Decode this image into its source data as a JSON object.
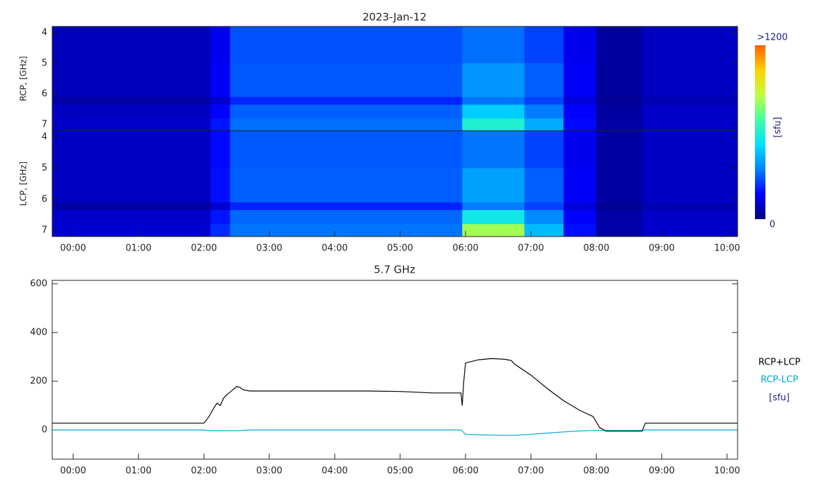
{
  "chart_data": [
    {
      "type": "heatmap",
      "title": "2023-Jan-12",
      "x_edges": [
        -0.32,
        2.1,
        2.4,
        5.95,
        6.9,
        7.5,
        8.0,
        8.7,
        10.16
      ],
      "y_edges": [
        3.8,
        5.0,
        6.1,
        6.35,
        6.8,
        7.2
      ],
      "xlim": [
        -0.32,
        10.16
      ],
      "xticks": [
        {
          "value": 0,
          "label": "00:00"
        },
        {
          "value": 1,
          "label": "01:00"
        },
        {
          "value": 2,
          "label": "02:00"
        },
        {
          "value": 3,
          "label": "03:00"
        },
        {
          "value": 4,
          "label": "04:00"
        },
        {
          "value": 5,
          "label": "05:00"
        },
        {
          "value": 6,
          "label": "06:00"
        },
        {
          "value": 7,
          "label": "07:00"
        },
        {
          "value": 8,
          "label": "08:00"
        },
        {
          "value": 9,
          "label": "09:00"
        },
        {
          "value": 10,
          "label": "10:00"
        }
      ],
      "ylim": [
        3.8,
        7.2
      ],
      "yticks": [
        4,
        5,
        6,
        7
      ],
      "clim": [
        0,
        1200
      ],
      "colormap": [
        "#00007f",
        "#0000ff",
        "#0080ff",
        "#00e0ff",
        "#40ffa0",
        "#c0ff40",
        "#ffd000",
        "#ff6000"
      ],
      "colorbar": {
        "label": "[sfu]",
        "ticks": [
          0,
          {
            "value": 1200,
            "label": ">1200"
          }
        ]
      },
      "panels": [
        {
          "ylabel": "RCP, [GHz]",
          "values": [
            [
              80,
              150,
              280,
              320,
              260,
              150,
              40,
              90
            ],
            [
              80,
              160,
              290,
              380,
              300,
              160,
              40,
              90
            ],
            [
              50,
              100,
              220,
              330,
              260,
              120,
              30,
              70
            ],
            [
              90,
              170,
              300,
              480,
              340,
              170,
              45,
              95
            ],
            [
              100,
              200,
              320,
              600,
              420,
              180,
              50,
              100
            ]
          ]
        },
        {
          "ylabel": "LCP, [GHz]",
          "values": [
            [
              90,
              180,
              290,
              330,
              260,
              150,
              45,
              90
            ],
            [
              90,
              190,
              300,
              400,
              300,
              160,
              45,
              90
            ],
            [
              50,
              110,
              220,
              340,
              260,
              120,
              30,
              70
            ],
            [
              100,
              200,
              310,
              560,
              360,
              170,
              50,
              95
            ],
            [
              110,
              230,
              330,
              820,
              450,
              190,
              55,
              100
            ]
          ]
        }
      ]
    },
    {
      "type": "line",
      "title": "5.7 GHz",
      "y_label": "[sfu]",
      "x": [
        -0.32,
        2.0,
        2.05,
        2.1,
        2.15,
        2.2,
        2.25,
        2.3,
        2.35,
        2.4,
        2.5,
        2.55,
        2.6,
        2.7,
        3.5,
        4.0,
        4.5,
        5.0,
        5.5,
        5.93,
        5.95,
        5.97,
        6.0,
        6.2,
        6.4,
        6.6,
        6.7,
        6.75,
        7.0,
        7.25,
        7.5,
        7.75,
        7.95,
        8.05,
        8.15,
        8.5,
        8.7,
        8.75,
        10.16
      ],
      "series": [
        {
          "name": "RCP+LCP",
          "color": "#000000",
          "values": [
            28,
            28,
            45,
            65,
            90,
            110,
            100,
            130,
            145,
            155,
            178,
            175,
            165,
            160,
            160,
            160,
            160,
            158,
            152,
            152,
            100,
            190,
            275,
            288,
            293,
            290,
            285,
            270,
            225,
            170,
            120,
            80,
            55,
            10,
            -5,
            -5,
            -5,
            28,
            28
          ]
        },
        {
          "name": "RCP-LCP",
          "color": "#00a8d8",
          "values": [
            0,
            0,
            -2,
            -3,
            -3,
            -3,
            -3,
            -3,
            -3,
            -3,
            -3,
            -3,
            -2,
            0,
            0,
            0,
            0,
            0,
            0,
            0,
            -5,
            -10,
            -18,
            -20,
            -21,
            -22,
            -22,
            -22,
            -18,
            -13,
            -8,
            -4,
            -2,
            -2,
            -2,
            -2,
            -2,
            0,
            0
          ]
        }
      ],
      "xlim": [
        -0.32,
        10.16
      ],
      "xticks": [
        {
          "value": 0,
          "label": "00:00"
        },
        {
          "value": 1,
          "label": "01:00"
        },
        {
          "value": 2,
          "label": "02:00"
        },
        {
          "value": 3,
          "label": "03:00"
        },
        {
          "value": 4,
          "label": "04:00"
        },
        {
          "value": 5,
          "label": "05:00"
        },
        {
          "value": 6,
          "label": "06:00"
        },
        {
          "value": 7,
          "label": "07:00"
        },
        {
          "value": 8,
          "label": "08:00"
        },
        {
          "value": 9,
          "label": "09:00"
        },
        {
          "value": 10,
          "label": "10:00"
        }
      ],
      "ylim": [
        -120,
        614
      ],
      "yticks": [
        0,
        200,
        400,
        600
      ]
    }
  ]
}
